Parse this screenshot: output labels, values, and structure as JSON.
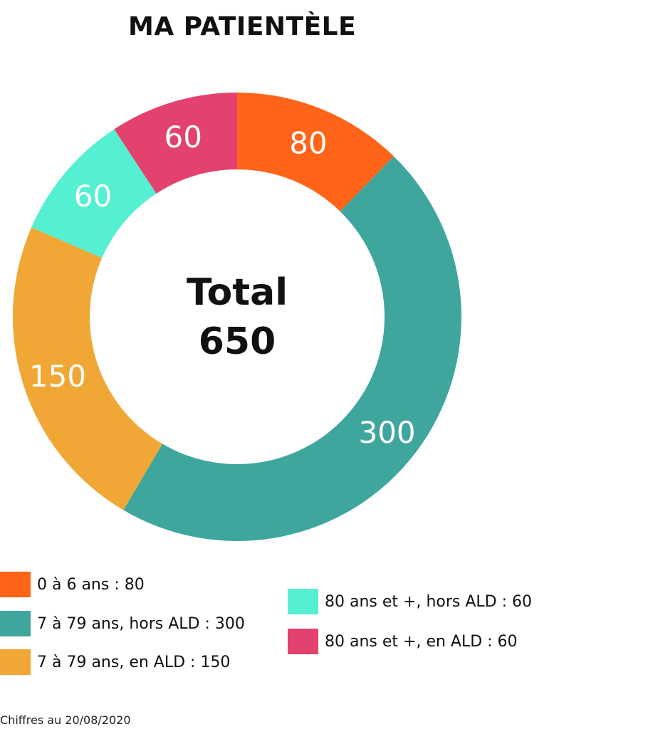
{
  "title": "MA PATIENTÈLE",
  "footer": "Chiffres au 20/08/2020",
  "chart_data": {
    "type": "pie",
    "center_label": "Total",
    "total": 650,
    "total_label": "650",
    "slices": [
      {
        "value": 80,
        "label": "80",
        "legend": "0 à 6 ans : 80",
        "color": "#FF6419"
      },
      {
        "value": 300,
        "label": "300",
        "legend": "7 à 79 ans, hors ALD : 300",
        "color": "#3FA69E"
      },
      {
        "value": 150,
        "label": "150",
        "legend": "7 à 79 ans, en ALD : 150",
        "color": "#F0A735"
      },
      {
        "value": 60,
        "label": "60",
        "legend": "80 ans et +, hors ALD : 60",
        "color": "#55EFD1"
      },
      {
        "value": 60,
        "label": "60",
        "legend": "80 ans et +, en ALD : 60",
        "color": "#E3426F"
      }
    ]
  }
}
